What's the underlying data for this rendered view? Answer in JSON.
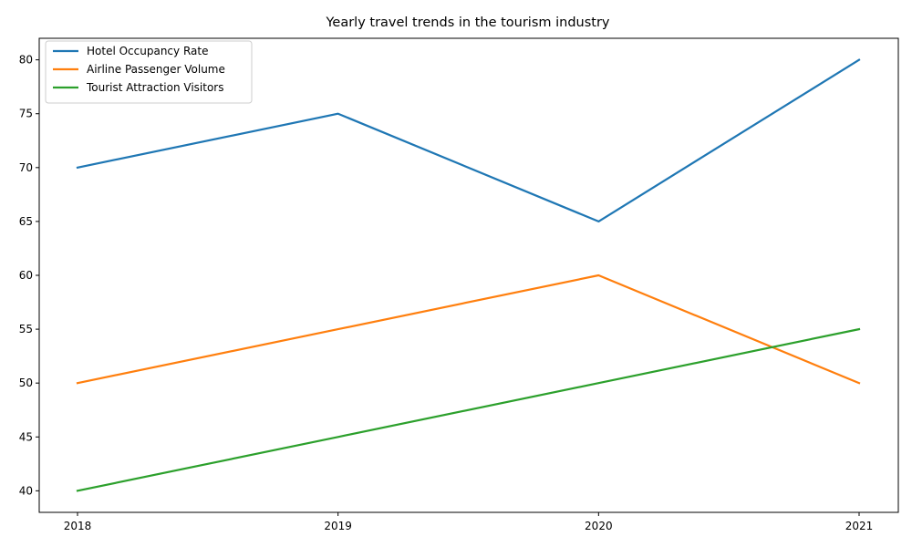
{
  "chart_data": {
    "type": "line",
    "title": "Yearly travel trends in the tourism industry",
    "xlabel": "",
    "ylabel": "",
    "categories": [
      "2018",
      "2019",
      "2020",
      "2021"
    ],
    "yticks": [
      40,
      45,
      50,
      55,
      60,
      65,
      70,
      75,
      80
    ],
    "ylim": [
      38.0,
      82.0
    ],
    "grid": false,
    "legend_position": "top-left",
    "series": [
      {
        "name": "Hotel Occupancy Rate",
        "color": "#1f77b4",
        "values": [
          70,
          75,
          65,
          80
        ]
      },
      {
        "name": "Airline Passenger Volume",
        "color": "#ff7f0e",
        "values": [
          50,
          55,
          60,
          50
        ]
      },
      {
        "name": "Tourist Attraction Visitors",
        "color": "#2ca02c",
        "values": [
          40,
          45,
          50,
          55
        ]
      }
    ]
  }
}
